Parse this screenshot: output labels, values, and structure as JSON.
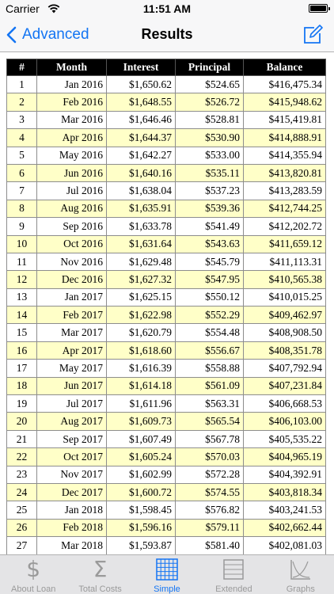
{
  "status": {
    "carrier": "Carrier",
    "time": "11:51 AM"
  },
  "nav": {
    "back_label": "Advanced",
    "title": "Results"
  },
  "table": {
    "headers": [
      "#",
      "Month",
      "Interest",
      "Principal",
      "Balance"
    ],
    "rows": [
      [
        "1",
        "Jan 2016",
        "$1,650.62",
        "$524.65",
        "$416,475.34"
      ],
      [
        "2",
        "Feb 2016",
        "$1,648.55",
        "$526.72",
        "$415,948.62"
      ],
      [
        "3",
        "Mar 2016",
        "$1,646.46",
        "$528.81",
        "$415,419.81"
      ],
      [
        "4",
        "Apr 2016",
        "$1,644.37",
        "$530.90",
        "$414,888.91"
      ],
      [
        "5",
        "May 2016",
        "$1,642.27",
        "$533.00",
        "$414,355.94"
      ],
      [
        "6",
        "Jun 2016",
        "$1,640.16",
        "$535.11",
        "$413,820.81"
      ],
      [
        "7",
        "Jul 2016",
        "$1,638.04",
        "$537.23",
        "$413,283.59"
      ],
      [
        "8",
        "Aug 2016",
        "$1,635.91",
        "$539.36",
        "$412,744.25"
      ],
      [
        "9",
        "Sep 2016",
        "$1,633.78",
        "$541.49",
        "$412,202.72"
      ],
      [
        "10",
        "Oct 2016",
        "$1,631.64",
        "$543.63",
        "$411,659.12"
      ],
      [
        "11",
        "Nov 2016",
        "$1,629.48",
        "$545.79",
        "$411,113.31"
      ],
      [
        "12",
        "Dec 2016",
        "$1,627.32",
        "$547.95",
        "$410,565.38"
      ],
      [
        "13",
        "Jan 2017",
        "$1,625.15",
        "$550.12",
        "$410,015.25"
      ],
      [
        "14",
        "Feb 2017",
        "$1,622.98",
        "$552.29",
        "$409,462.97"
      ],
      [
        "15",
        "Mar 2017",
        "$1,620.79",
        "$554.48",
        "$408,908.50"
      ],
      [
        "16",
        "Apr 2017",
        "$1,618.60",
        "$556.67",
        "$408,351.78"
      ],
      [
        "17",
        "May 2017",
        "$1,616.39",
        "$558.88",
        "$407,792.94"
      ],
      [
        "18",
        "Jun 2017",
        "$1,614.18",
        "$561.09",
        "$407,231.84"
      ],
      [
        "19",
        "Jul 2017",
        "$1,611.96",
        "$563.31",
        "$406,668.53"
      ],
      [
        "20",
        "Aug 2017",
        "$1,609.73",
        "$565.54",
        "$406,103.00"
      ],
      [
        "21",
        "Sep 2017",
        "$1,607.49",
        "$567.78",
        "$405,535.22"
      ],
      [
        "22",
        "Oct 2017",
        "$1,605.24",
        "$570.03",
        "$404,965.19"
      ],
      [
        "23",
        "Nov 2017",
        "$1,602.99",
        "$572.28",
        "$404,392.91"
      ],
      [
        "24",
        "Dec 2017",
        "$1,600.72",
        "$574.55",
        "$403,818.34"
      ],
      [
        "25",
        "Jan 2018",
        "$1,598.45",
        "$576.82",
        "$403,241.53"
      ],
      [
        "26",
        "Feb 2018",
        "$1,596.16",
        "$579.11",
        "$402,662.44"
      ],
      [
        "27",
        "Mar 2018",
        "$1,593.87",
        "$581.40",
        "$402,081.03"
      ]
    ]
  },
  "tabs": [
    {
      "label": "About Loan",
      "icon": "dollar-icon",
      "active": false
    },
    {
      "label": "Total Costs",
      "icon": "sigma-icon",
      "active": false
    },
    {
      "label": "Simple",
      "icon": "grid-icon",
      "active": true
    },
    {
      "label": "Extended",
      "icon": "lines-icon",
      "active": false
    },
    {
      "label": "Graphs",
      "icon": "graph-icon",
      "active": false
    }
  ],
  "colors": {
    "accent": "#1475f3",
    "row_alt": "#ffffc8",
    "header_bg": "#000000"
  }
}
